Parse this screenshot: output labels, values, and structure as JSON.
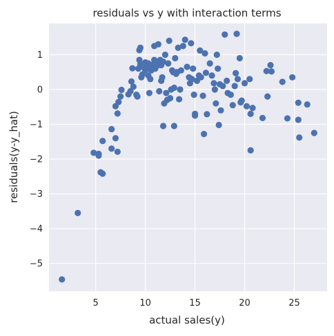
{
  "chart_data": {
    "type": "scatter",
    "title": "residuals vs y with interaction terms",
    "xlabel": "actual sales(y)",
    "ylabel": "residuals(y-y_hat)",
    "xlim": [
      0.3,
      28.3
    ],
    "ylim": [
      -5.8,
      1.9
    ],
    "xticks": [
      5,
      10,
      15,
      20,
      25
    ],
    "yticks": [
      -5,
      -4,
      -3,
      -2,
      -1,
      0,
      1
    ],
    "grid": true,
    "style": {
      "face": "#eaeaf2",
      "grid": "#ffffff",
      "marker": "#4c72b0"
    },
    "points": [
      {
        "x": 1.6,
        "y": -5.46
      },
      {
        "x": 3.2,
        "y": -3.55
      },
      {
        "x": 4.8,
        "y": -1.82
      },
      {
        "x": 5.3,
        "y": -1.85
      },
      {
        "x": 5.3,
        "y": -1.9
      },
      {
        "x": 5.5,
        "y": -2.38
      },
      {
        "x": 5.7,
        "y": -2.42
      },
      {
        "x": 5.7,
        "y": -1.48
      },
      {
        "x": 6.6,
        "y": -1.14
      },
      {
        "x": 6.6,
        "y": -1.7
      },
      {
        "x": 7.0,
        "y": -1.4
      },
      {
        "x": 7.2,
        "y": -1.79
      },
      {
        "x": 7.0,
        "y": -0.48
      },
      {
        "x": 7.2,
        "y": -0.69
      },
      {
        "x": 7.3,
        "y": -0.36
      },
      {
        "x": 7.5,
        "y": -0.2
      },
      {
        "x": 7.6,
        "y": -0.01
      },
      {
        "x": 8.3,
        "y": -0.14
      },
      {
        "x": 8.5,
        "y": -0.05
      },
      {
        "x": 8.6,
        "y": 0.23
      },
      {
        "x": 8.7,
        "y": 0.61
      },
      {
        "x": 8.8,
        "y": 0.08
      },
      {
        "x": 9.1,
        "y": -0.15
      },
      {
        "x": 9.2,
        "y": -0.2
      },
      {
        "x": 9.3,
        "y": 0.6
      },
      {
        "x": 9.4,
        "y": 0.85
      },
      {
        "x": 9.5,
        "y": 0.73
      },
      {
        "x": 9.4,
        "y": 1.13
      },
      {
        "x": 9.5,
        "y": 1.2
      },
      {
        "x": 9.6,
        "y": 0.35
      },
      {
        "x": 9.7,
        "y": 0.43
      },
      {
        "x": 9.9,
        "y": 0.62
      },
      {
        "x": 10.0,
        "y": 0.55
      },
      {
        "x": 10.0,
        "y": 0.78
      },
      {
        "x": 10.2,
        "y": 0.62
      },
      {
        "x": 10.3,
        "y": 0.75
      },
      {
        "x": 10.3,
        "y": 0.4
      },
      {
        "x": 10.4,
        "y": -0.1
      },
      {
        "x": 10.5,
        "y": 0.3
      },
      {
        "x": 10.6,
        "y": 0.65
      },
      {
        "x": 10.6,
        "y": 0.55
      },
      {
        "x": 10.8,
        "y": 0.72
      },
      {
        "x": 10.9,
        "y": 0.85
      },
      {
        "x": 10.9,
        "y": 1.25
      },
      {
        "x": 11.0,
        "y": 0.6
      },
      {
        "x": 11.1,
        "y": 0.75
      },
      {
        "x": 11.2,
        "y": 0.8
      },
      {
        "x": 11.3,
        "y": 1.3
      },
      {
        "x": 11.3,
        "y": 0.7
      },
      {
        "x": 11.4,
        "y": -0.05
      },
      {
        "x": 11.5,
        "y": 0.85
      },
      {
        "x": 11.6,
        "y": 0.7
      },
      {
        "x": 11.6,
        "y": 0.25
      },
      {
        "x": 11.7,
        "y": 0.35
      },
      {
        "x": 11.8,
        "y": -1.05
      },
      {
        "x": 11.8,
        "y": 0.8
      },
      {
        "x": 11.9,
        "y": -0.4
      },
      {
        "x": 12.0,
        "y": 1.0
      },
      {
        "x": 12.1,
        "y": -0.1
      },
      {
        "x": 12.2,
        "y": -0.3
      },
      {
        "x": 12.3,
        "y": 0.75
      },
      {
        "x": 12.4,
        "y": 1.4
      },
      {
        "x": 12.5,
        "y": -0.25
      },
      {
        "x": 12.6,
        "y": 0.0
      },
      {
        "x": 12.7,
        "y": 0.55
      },
      {
        "x": 12.8,
        "y": 0.5
      },
      {
        "x": 12.9,
        "y": -1.05
      },
      {
        "x": 12.9,
        "y": 0.05
      },
      {
        "x": 13.0,
        "y": 0.9
      },
      {
        "x": 13.1,
        "y": 0.45
      },
      {
        "x": 13.2,
        "y": 0.5
      },
      {
        "x": 13.3,
        "y": 1.2
      },
      {
        "x": 13.4,
        "y": -0.28
      },
      {
        "x": 13.5,
        "y": 0.0
      },
      {
        "x": 13.6,
        "y": 0.55
      },
      {
        "x": 13.8,
        "y": 1.25
      },
      {
        "x": 14.0,
        "y": 1.43
      },
      {
        "x": 14.2,
        "y": 0.65
      },
      {
        "x": 14.4,
        "y": 0.35
      },
      {
        "x": 14.5,
        "y": 0.18
      },
      {
        "x": 14.6,
        "y": 1.33
      },
      {
        "x": 14.7,
        "y": 0.3
      },
      {
        "x": 14.8,
        "y": 0.6
      },
      {
        "x": 14.9,
        "y": -0.15
      },
      {
        "x": 15.0,
        "y": -0.7
      },
      {
        "x": 15.0,
        "y": -0.75
      },
      {
        "x": 15.2,
        "y": 0.25
      },
      {
        "x": 15.4,
        "y": 0.4
      },
      {
        "x": 15.5,
        "y": 1.12
      },
      {
        "x": 15.6,
        "y": 0.35
      },
      {
        "x": 15.8,
        "y": -0.18
      },
      {
        "x": 15.9,
        "y": -1.28
      },
      {
        "x": 16.0,
        "y": 1.04
      },
      {
        "x": 16.1,
        "y": 0.48
      },
      {
        "x": 16.2,
        "y": -0.71
      },
      {
        "x": 16.5,
        "y": 0.75
      },
      {
        "x": 16.7,
        "y": 0.4
      },
      {
        "x": 16.9,
        "y": 0.18
      },
      {
        "x": 17.0,
        "y": 0.0
      },
      {
        "x": 17.1,
        "y": -0.4
      },
      {
        "x": 17.2,
        "y": 1.0
      },
      {
        "x": 17.3,
        "y": 0.6
      },
      {
        "x": 17.4,
        "y": -1.02
      },
      {
        "x": 17.5,
        "y": 0.15
      },
      {
        "x": 17.6,
        "y": -0.6
      },
      {
        "x": 17.8,
        "y": 0.1
      },
      {
        "x": 18.0,
        "y": 1.58
      },
      {
        "x": 18.2,
        "y": 0.25
      },
      {
        "x": 18.3,
        "y": -0.1
      },
      {
        "x": 18.6,
        "y": -0.15
      },
      {
        "x": 18.8,
        "y": -0.45
      },
      {
        "x": 19.0,
        "y": 0.1
      },
      {
        "x": 19.1,
        "y": 0.47
      },
      {
        "x": 19.2,
        "y": 1.6
      },
      {
        "x": 19.3,
        "y": 0.3
      },
      {
        "x": 19.5,
        "y": 0.9
      },
      {
        "x": 19.6,
        "y": -0.37
      },
      {
        "x": 19.7,
        "y": -0.32
      },
      {
        "x": 20.0,
        "y": 0.18
      },
      {
        "x": 20.2,
        "y": -0.48
      },
      {
        "x": 20.5,
        "y": 0.3
      },
      {
        "x": 20.6,
        "y": -1.75
      },
      {
        "x": 20.6,
        "y": -0.7
      },
      {
        "x": 20.8,
        "y": -0.53
      },
      {
        "x": 21.8,
        "y": -0.82
      },
      {
        "x": 22.2,
        "y": 0.53
      },
      {
        "x": 22.3,
        "y": -0.2
      },
      {
        "x": 22.6,
        "y": 0.7
      },
      {
        "x": 22.7,
        "y": 0.52
      },
      {
        "x": 23.8,
        "y": 0.22
      },
      {
        "x": 24.3,
        "y": -0.83
      },
      {
        "x": 24.8,
        "y": 0.35
      },
      {
        "x": 25.4,
        "y": -0.38
      },
      {
        "x": 25.4,
        "y": -0.87
      },
      {
        "x": 25.5,
        "y": -1.38
      },
      {
        "x": 26.3,
        "y": -0.43
      },
      {
        "x": 27.0,
        "y": -1.25
      }
    ]
  }
}
